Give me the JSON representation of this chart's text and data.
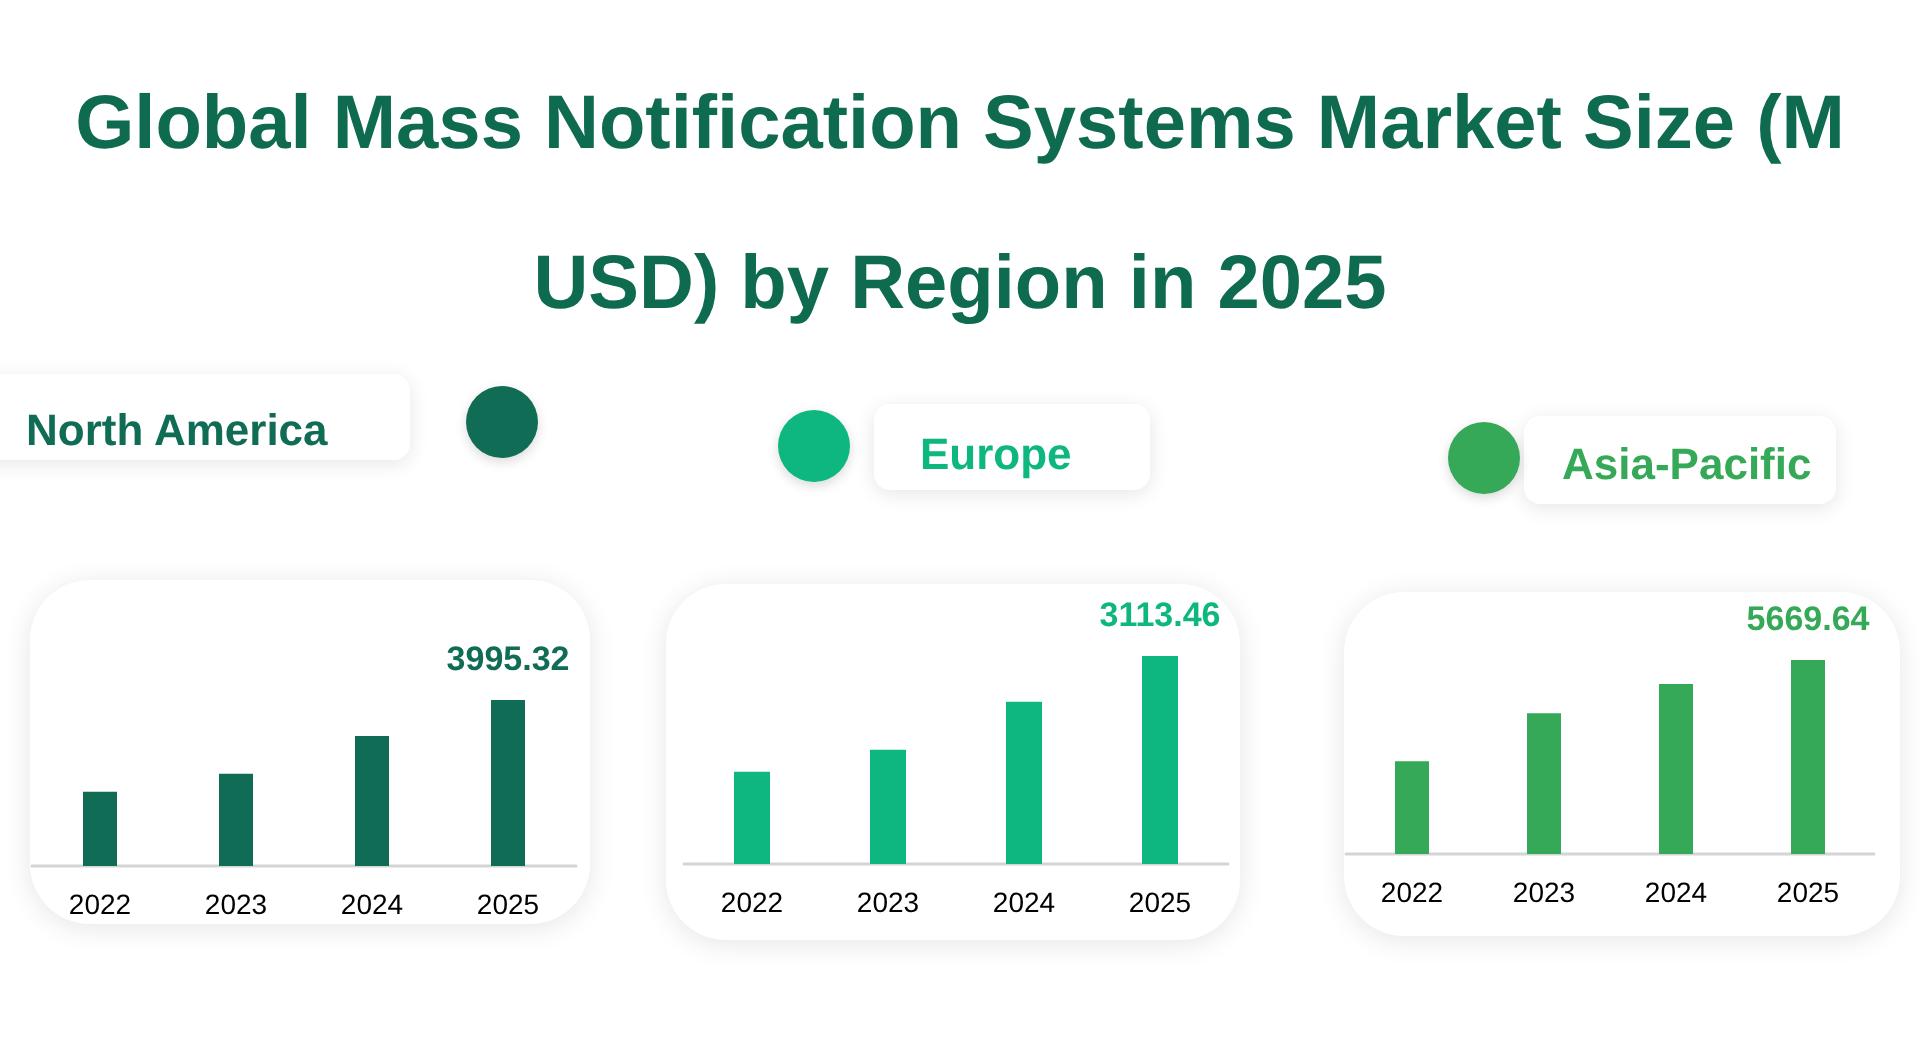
{
  "chart_data": [
    {
      "type": "other",
      "title": "Global Mass Notification Systems Market Size (M USD) by Region in 2025"
    },
    {
      "type": "bar",
      "title": "North America",
      "categories": [
        "2022",
        "2023",
        "2024",
        "2025"
      ],
      "values": [
        1790,
        2220,
        3130,
        3995.32
      ],
      "value_labels": [
        null,
        null,
        null,
        "3995.32"
      ],
      "color": "#116c55",
      "tick_labels": "x"
    },
    {
      "type": "bar",
      "title": "Europe",
      "categories": [
        "2022",
        "2023",
        "2024",
        "2025"
      ],
      "values": [
        1380,
        1710,
        2430,
        3113.46
      ],
      "value_labels": [
        null,
        null,
        null,
        "3113.46"
      ],
      "color": "#0db77f",
      "tick_labels": "x"
    },
    {
      "type": "bar",
      "title": "Asia-Pacific",
      "categories": [
        "2022",
        "2023",
        "2024",
        "2025"
      ],
      "values": [
        2710,
        4110,
        4970,
        5669.64
      ],
      "value_labels": [
        null,
        null,
        null,
        "5669.64"
      ],
      "color": "#35a957",
      "tick_labels": "x"
    }
  ]
}
